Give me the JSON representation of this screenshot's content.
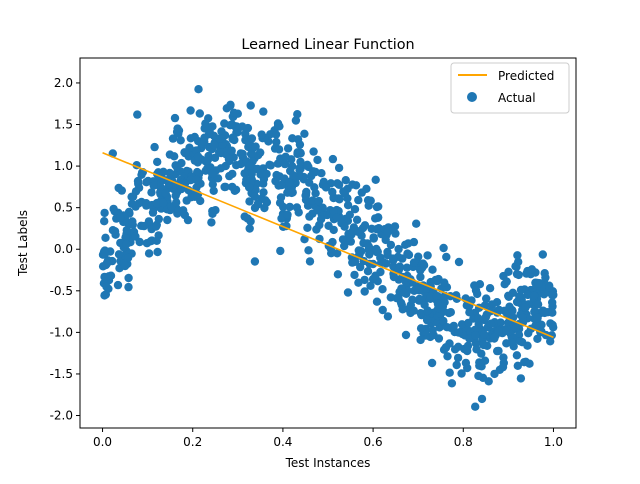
{
  "chart_data": {
    "type": "scatter",
    "title": "Learned Linear Function",
    "xlabel": "Test Instances",
    "ylabel": "Test Labels",
    "xlim": [
      -0.05,
      1.05
    ],
    "ylim": [
      -2.15,
      2.3
    ],
    "xticks": [
      "0.0",
      "0.2",
      "0.4",
      "0.6",
      "0.8",
      "1.0"
    ],
    "xtick_values": [
      0.0,
      0.2,
      0.4,
      0.6,
      0.8,
      1.0
    ],
    "yticks": [
      "-2.0",
      "-1.5",
      "-1.0",
      "-0.5",
      "0.0",
      "0.5",
      "1.0",
      "1.5",
      "2.0"
    ],
    "ytick_values": [
      -2.0,
      -1.5,
      -1.0,
      -0.5,
      0.0,
      0.5,
      1.0,
      1.5,
      2.0
    ],
    "grid": false,
    "legend_position": "top-right",
    "series": [
      {
        "name": "Predicted",
        "kind": "line",
        "color": "#ffa500",
        "x": [
          0.0,
          1.0
        ],
        "y": [
          1.16,
          -1.06
        ]
      },
      {
        "name": "Actual",
        "kind": "scatter",
        "color": "#1f77b4",
        "point_count": 1000,
        "x": [
          0.0,
          0.01,
          0.02,
          0.03,
          0.05,
          0.06,
          0.08,
          0.1,
          0.12,
          0.15,
          0.18,
          0.2,
          0.23,
          0.25,
          0.28,
          0.3,
          0.33,
          0.35,
          0.38,
          0.4,
          0.43,
          0.45,
          0.48,
          0.5,
          0.53,
          0.55,
          0.58,
          0.6,
          0.63,
          0.65,
          0.68,
          0.7,
          0.73,
          0.75,
          0.78,
          0.8,
          0.83,
          0.85,
          0.88,
          0.9,
          0.93,
          0.95,
          0.98,
          1.0
        ],
        "y": [
          0.05,
          -0.42,
          0.1,
          0.38,
          0.12,
          0.3,
          0.65,
          0.45,
          0.55,
          0.75,
          0.9,
          1.1,
          1.2,
          1.05,
          1.25,
          1.15,
          1.0,
          0.95,
          1.1,
          0.85,
          0.9,
          0.75,
          0.6,
          0.5,
          0.4,
          0.3,
          0.15,
          0.05,
          -0.1,
          -0.25,
          -0.4,
          -0.5,
          -0.65,
          -0.75,
          -0.85,
          -0.95,
          -1.0,
          -1.1,
          -0.9,
          -0.85,
          -0.8,
          -0.75,
          -0.7,
          -0.6
        ]
      }
    ]
  }
}
